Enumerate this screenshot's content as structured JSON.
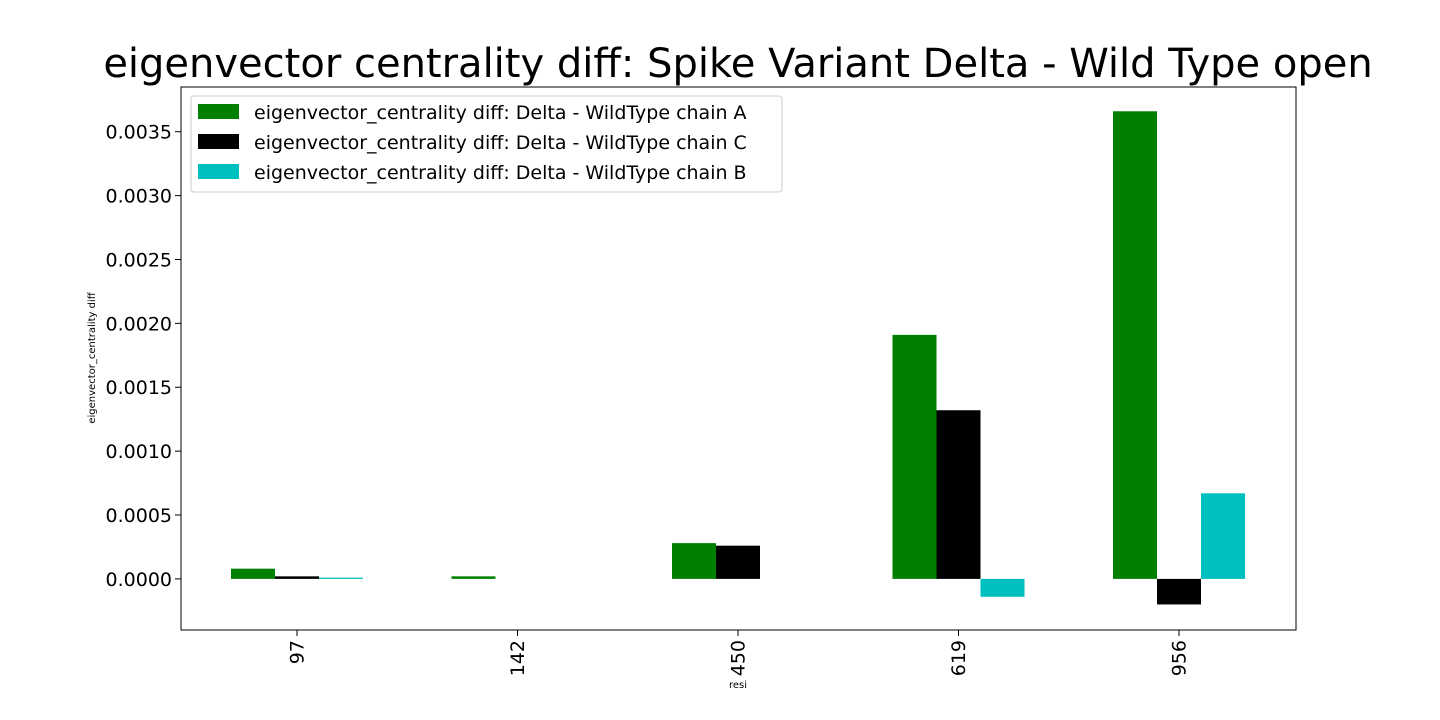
{
  "chart_data": {
    "type": "bar",
    "title": "eigenvector centrality diff: Spike Variant Delta - Wild Type open",
    "xlabel": "resi",
    "ylabel": "eigenvector_centrality diff",
    "categories": [
      "97",
      "142",
      "450",
      "619",
      "956"
    ],
    "ylim": [
      -0.0004,
      0.00385
    ],
    "yticks": [
      0.0,
      0.0005,
      0.001,
      0.0015,
      0.002,
      0.0025,
      0.003,
      0.0035
    ],
    "ytick_labels": [
      "0.0000",
      "0.0005",
      "0.0010",
      "0.0015",
      "0.0020",
      "0.0025",
      "0.0030",
      "0.0035"
    ],
    "series": [
      {
        "name": "eigenvector_centrality diff: Delta - WildType chain A",
        "color": "#008000",
        "values": [
          8e-05,
          2e-05,
          0.00028,
          0.00191,
          0.00366
        ]
      },
      {
        "name": "eigenvector_centrality diff: Delta - WildType chain C",
        "color": "#000000",
        "values": [
          2e-05,
          0.0,
          0.00026,
          0.00132,
          -0.0002
        ]
      },
      {
        "name": "eigenvector_centrality diff: Delta - WildType chain B",
        "color": "#00bfbf",
        "values": [
          1e-05,
          0.0,
          0.0,
          -0.00014,
          0.00067
        ]
      }
    ],
    "grid": false,
    "legend_position": "top-left"
  }
}
